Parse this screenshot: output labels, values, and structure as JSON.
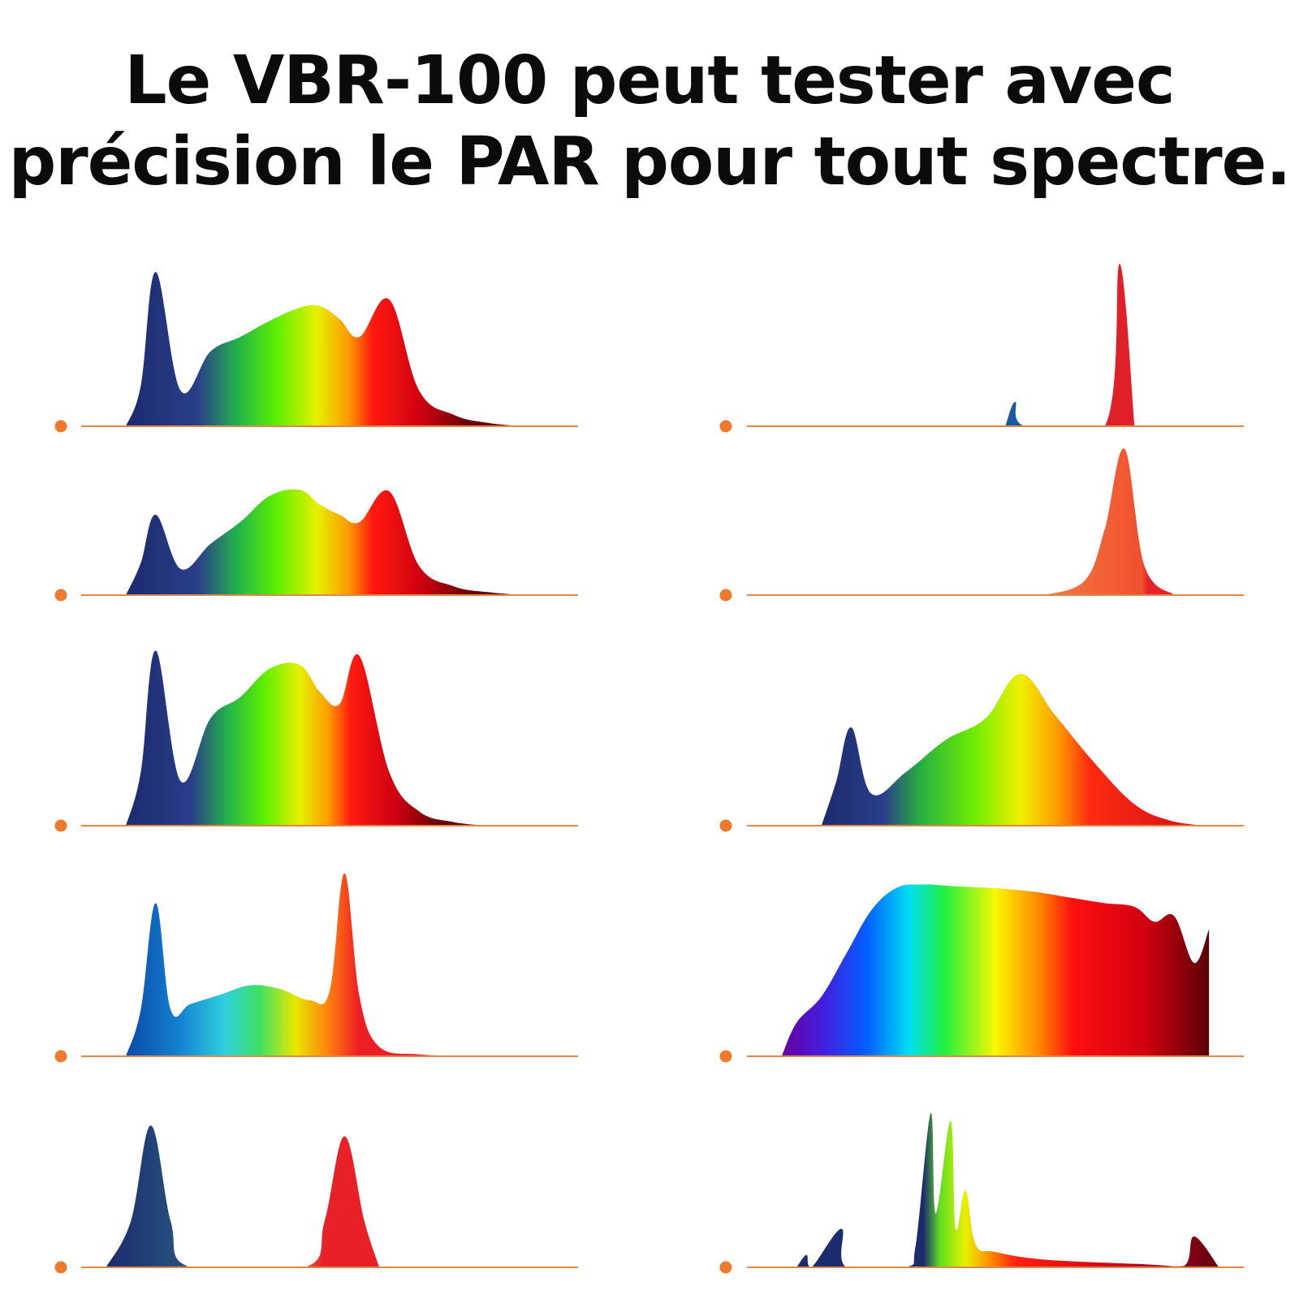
{
  "title": {
    "line1": "Le VBR-100 peut tester avec",
    "line2": "précision le PAR pour tout spectre."
  },
  "colors": {
    "baseline": "#e0874a",
    "marker": "#ef7a2e",
    "title": "#0b0b0b"
  },
  "chart_data": [
    {
      "type": "area",
      "column": "left",
      "row": 1,
      "xlim": [
        0,
        1
      ],
      "ylim": [
        0,
        1
      ],
      "gradient": "full",
      "x": [
        0.09,
        0.12,
        0.15,
        0.2,
        0.26,
        0.32,
        0.38,
        0.44,
        0.48,
        0.52,
        0.56,
        0.62,
        0.68,
        0.75,
        0.82,
        0.89
      ],
      "y": [
        0,
        0.25,
        0.95,
        0.22,
        0.46,
        0.55,
        0.65,
        0.73,
        0.74,
        0.66,
        0.55,
        0.78,
        0.22,
        0.07,
        0.02,
        0
      ]
    },
    {
      "type": "area",
      "column": "right",
      "row": 1,
      "xlim": [
        0,
        1
      ],
      "ylim": [
        0,
        1
      ],
      "gradient": "spikes",
      "x": [
        0.52,
        0.54,
        0.56,
        0.72,
        0.75,
        0.78
      ],
      "y": [
        0,
        0.15,
        0,
        0,
        1.0,
        0
      ]
    },
    {
      "type": "area",
      "column": "left",
      "row": 2,
      "xlim": [
        0,
        1
      ],
      "ylim": [
        0,
        1
      ],
      "gradient": "full",
      "x": [
        0.09,
        0.12,
        0.15,
        0.2,
        0.26,
        0.32,
        0.38,
        0.44,
        0.48,
        0.52,
        0.56,
        0.62,
        0.68,
        0.75,
        0.82,
        0.89
      ],
      "y": [
        0,
        0.22,
        0.55,
        0.18,
        0.35,
        0.5,
        0.68,
        0.72,
        0.62,
        0.55,
        0.5,
        0.71,
        0.2,
        0.06,
        0.02,
        0
      ]
    },
    {
      "type": "area",
      "column": "right",
      "row": 2,
      "xlim": [
        0,
        1
      ],
      "ylim": [
        0,
        1
      ],
      "gradient": "red",
      "x": [
        0.6,
        0.68,
        0.72,
        0.76,
        0.8,
        0.86
      ],
      "y": [
        0,
        0.1,
        0.45,
        1.0,
        0.2,
        0
      ]
    },
    {
      "type": "area",
      "column": "left",
      "row": 3,
      "xlim": [
        0,
        1
      ],
      "ylim": [
        0,
        1
      ],
      "gradient": "full",
      "x": [
        0.09,
        0.12,
        0.15,
        0.2,
        0.26,
        0.32,
        0.38,
        0.44,
        0.48,
        0.52,
        0.56,
        0.62,
        0.68,
        0.75,
        0.82
      ],
      "y": [
        0,
        0.3,
        0.98,
        0.25,
        0.6,
        0.72,
        0.88,
        0.9,
        0.75,
        0.68,
        0.95,
        0.3,
        0.08,
        0.02,
        0
      ]
    },
    {
      "type": "area",
      "column": "right",
      "row": 3,
      "xlim": [
        0,
        1
      ],
      "ylim": [
        0,
        1
      ],
      "gradient": "warm",
      "x": [
        0.15,
        0.18,
        0.21,
        0.25,
        0.32,
        0.4,
        0.48,
        0.55,
        0.62,
        0.7,
        0.78,
        0.85,
        0.92
      ],
      "y": [
        0,
        0.25,
        0.55,
        0.18,
        0.3,
        0.48,
        0.6,
        0.85,
        0.62,
        0.35,
        0.12,
        0.03,
        0
      ]
    },
    {
      "type": "area",
      "column": "left",
      "row": 4,
      "xlim": [
        0,
        1
      ],
      "ylim": [
        0,
        1
      ],
      "gradient": "cool",
      "x": [
        0.09,
        0.12,
        0.15,
        0.18,
        0.22,
        0.28,
        0.34,
        0.4,
        0.46,
        0.5,
        0.53,
        0.56,
        0.6,
        0.68,
        0.8
      ],
      "y": [
        0,
        0.25,
        0.82,
        0.25,
        0.28,
        0.33,
        0.38,
        0.36,
        0.3,
        0.35,
        0.98,
        0.32,
        0.05,
        0.01,
        0
      ]
    },
    {
      "type": "area",
      "column": "right",
      "row": 4,
      "xlim": [
        0,
        1
      ],
      "ylim": [
        0,
        1
      ],
      "gradient": "broad",
      "x": [
        0.07,
        0.1,
        0.15,
        0.2,
        0.25,
        0.3,
        0.35,
        0.42,
        0.5,
        0.58,
        0.65,
        0.72,
        0.78,
        0.82,
        0.86,
        0.9,
        0.93
      ],
      "y": [
        0,
        0.18,
        0.32,
        0.55,
        0.78,
        0.9,
        0.92,
        0.91,
        0.9,
        0.88,
        0.85,
        0.82,
        0.8,
        0.72,
        0.75,
        0.5,
        0.68
      ]
    },
    {
      "type": "area",
      "column": "left",
      "row": 5,
      "xlim": [
        0,
        1
      ],
      "ylim": [
        0,
        1
      ],
      "gradient": "twin",
      "x": [
        0.05,
        0.1,
        0.14,
        0.18,
        0.22,
        0.45,
        0.49,
        0.53,
        0.57,
        0.6
      ],
      "y": [
        0,
        0.3,
        0.92,
        0.3,
        0,
        0,
        0.3,
        0.85,
        0.3,
        0
      ]
    },
    {
      "type": "area",
      "column": "right",
      "row": 5,
      "xlim": [
        0,
        1
      ],
      "ylim": [
        0,
        1
      ],
      "gradient": "hps",
      "x": [
        0.1,
        0.12,
        0.13,
        0.19,
        0.2,
        0.32,
        0.34,
        0.37,
        0.38,
        0.41,
        0.42,
        0.44,
        0.46,
        0.5,
        0.6,
        0.8,
        0.88,
        0.9,
        0.95
      ],
      "y": [
        0,
        0.08,
        0,
        0.25,
        0,
        0,
        0.15,
        1.0,
        0.35,
        0.95,
        0.25,
        0.5,
        0.15,
        0.1,
        0.05,
        0.02,
        0.01,
        0.2,
        0
      ]
    }
  ]
}
